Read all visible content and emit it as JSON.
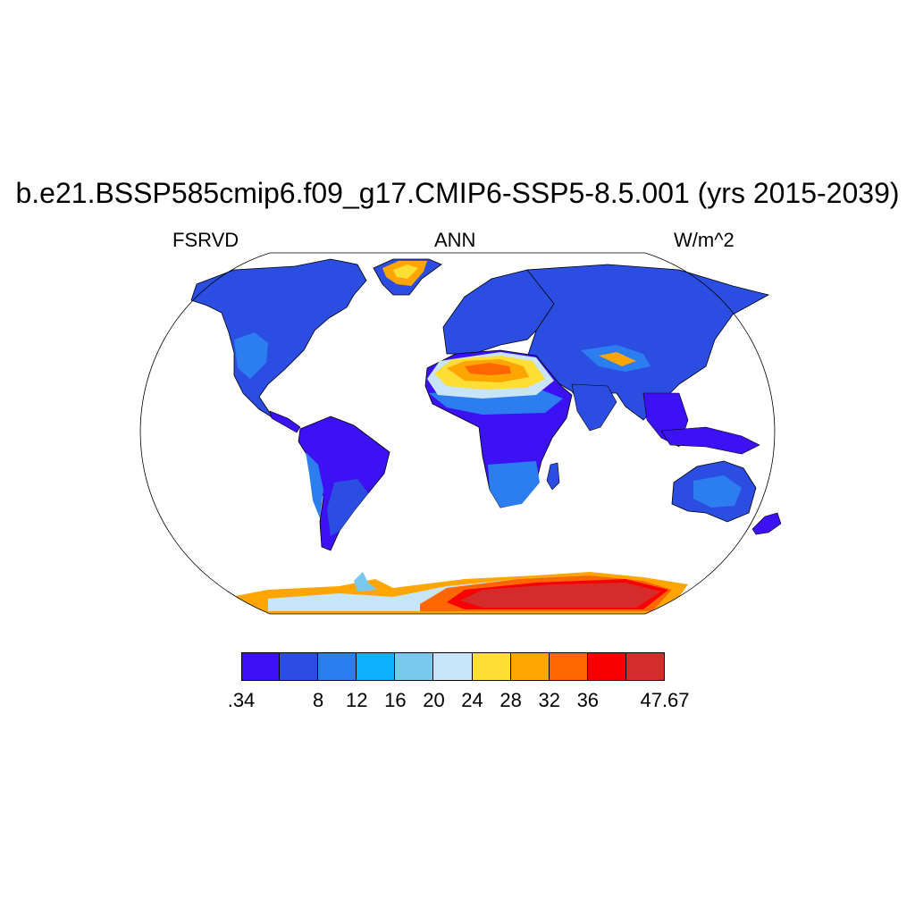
{
  "title": "b.e21.BSSP585cmip6.f09_g17.CMIP6-SSP5-8.5.001 (yrs 2015-2039)",
  "subtitle_left": "FSRVD",
  "subtitle_center": "ANN",
  "subtitle_right": "W/m^2",
  "colorbar": {
    "colors": [
      "#3c12f5",
      "#2b4de2",
      "#2c7ef0",
      "#0db0fb",
      "#78c8ee",
      "#c8e4f8",
      "#fedd35",
      "#ffa500",
      "#ff6500",
      "#f90000",
      "#d62b2b"
    ],
    "labels": [
      ".34",
      "8",
      "12",
      "16",
      "20",
      "24",
      "28",
      "32",
      "36",
      "47.67"
    ]
  },
  "map": {
    "projection": "Robinson",
    "ocean_fill": "#ffffff",
    "coastline_color": "#000000"
  }
}
